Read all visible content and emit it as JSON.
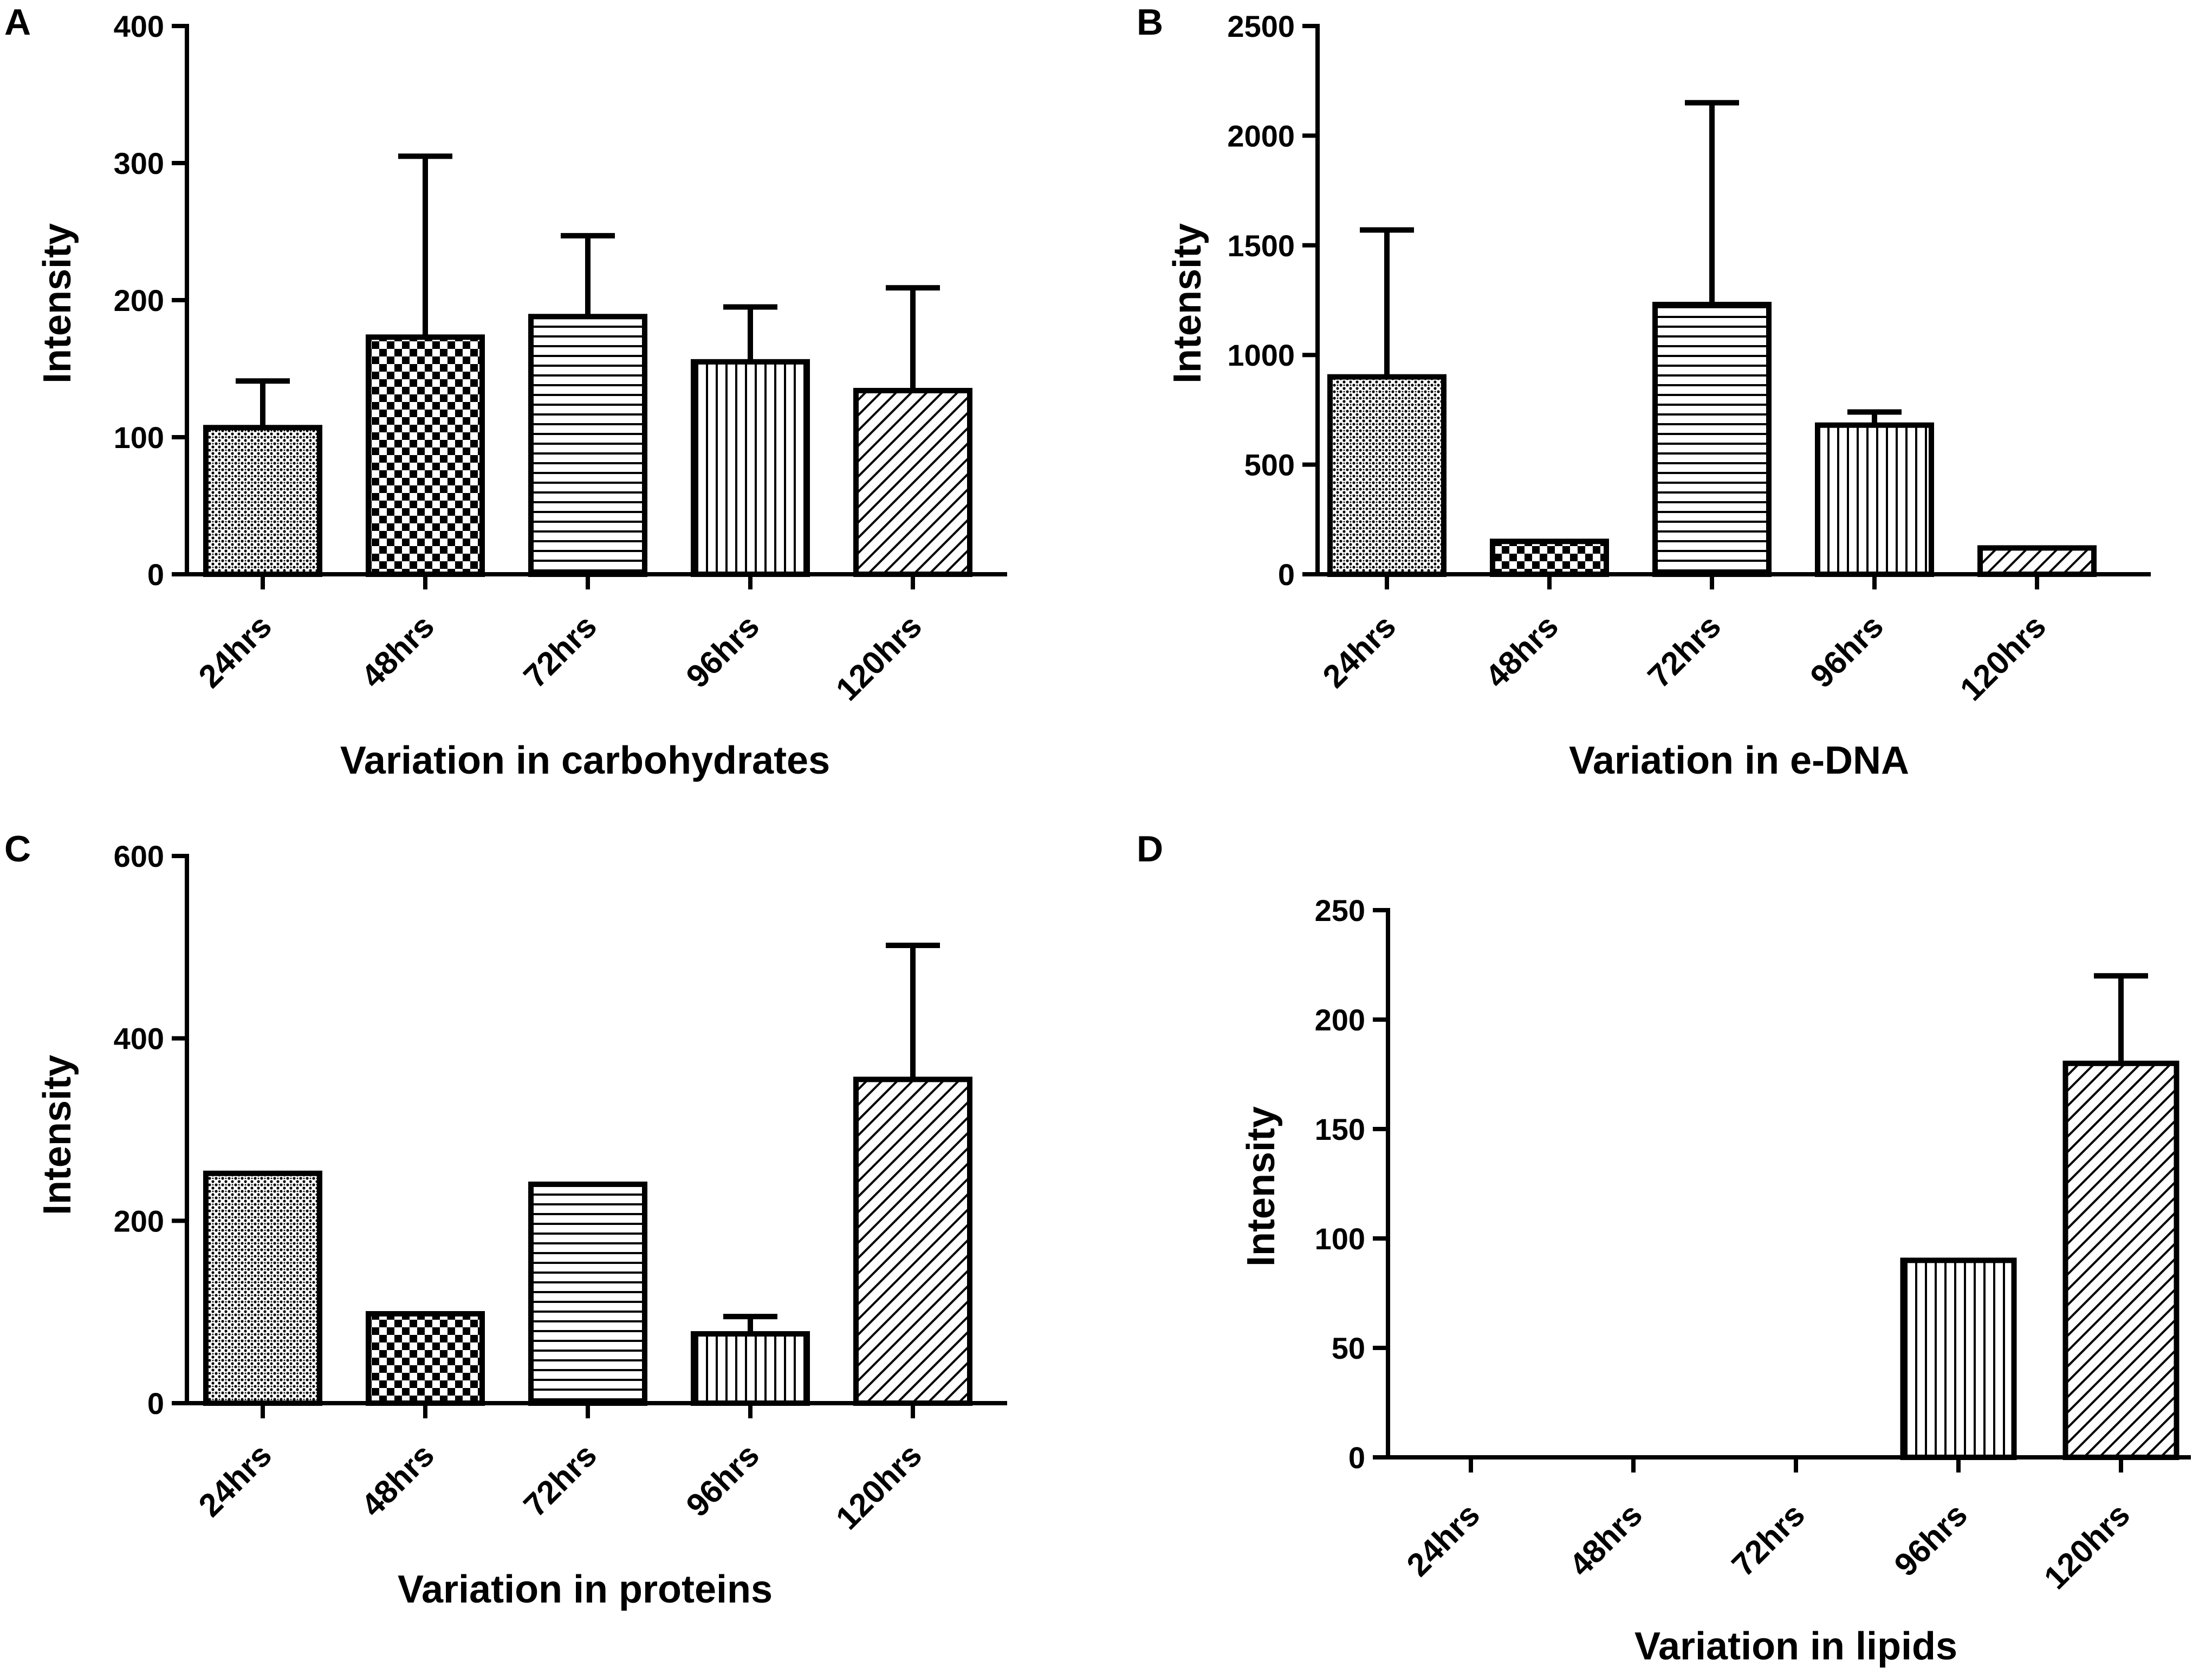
{
  "chart_data": [
    {
      "panel": "A",
      "type": "bar",
      "categories": [
        "24hrs",
        "48hrs",
        "72hrs",
        "96hrs",
        "120hrs"
      ],
      "values": [
        107,
        173,
        188,
        155,
        134
      ],
      "error_upper": [
        141,
        305,
        247,
        195,
        209
      ],
      "patterns": [
        "dense-dots",
        "checker",
        "hlines",
        "vlines",
        "diag"
      ],
      "ylim": [
        0,
        400
      ],
      "yticks": [
        0,
        100,
        200,
        300,
        400
      ],
      "ylabel": "Intensity",
      "xlabel": "Variation in carbohydrates"
    },
    {
      "panel": "B",
      "type": "bar",
      "categories": [
        "24hrs",
        "48hrs",
        "72hrs",
        "96hrs",
        "120hrs"
      ],
      "values": [
        900,
        150,
        1230,
        680,
        120
      ],
      "error_upper": [
        1570,
        150,
        2150,
        740,
        120
      ],
      "patterns": [
        "dense-dots",
        "checker",
        "hlines",
        "vlines",
        "diag"
      ],
      "ylim": [
        0,
        2500
      ],
      "yticks": [
        0,
        500,
        1000,
        1500,
        2000,
        2500
      ],
      "ylabel": "Intensity",
      "xlabel": "Variation in e-DNA"
    },
    {
      "panel": "C",
      "type": "bar",
      "categories": [
        "24hrs",
        "48hrs",
        "72hrs",
        "96hrs",
        "120hrs"
      ],
      "values": [
        252,
        98,
        240,
        76,
        355
      ],
      "error_upper": [
        252,
        98,
        240,
        95,
        502
      ],
      "patterns": [
        "dense-dots",
        "checker",
        "hlines",
        "vlines",
        "diag"
      ],
      "ylim": [
        0,
        600
      ],
      "yticks": [
        0,
        200,
        400,
        600
      ],
      "ylabel": "Intensity",
      "xlabel": "Variation in proteins"
    },
    {
      "panel": "D",
      "type": "bar",
      "categories": [
        "24hrs",
        "48hrs",
        "72hrs",
        "96hrs",
        "120hrs"
      ],
      "values": [
        0,
        0,
        0,
        90,
        180
      ],
      "error_upper": [
        0,
        0,
        0,
        90,
        220
      ],
      "patterns": [
        "dense-dots",
        "checker",
        "hlines",
        "vlines",
        "diag"
      ],
      "ylim": [
        0,
        250
      ],
      "yticks": [
        0,
        50,
        100,
        150,
        200,
        250
      ],
      "ylabel": "Intensity",
      "xlabel": "Variation in lipids"
    }
  ]
}
